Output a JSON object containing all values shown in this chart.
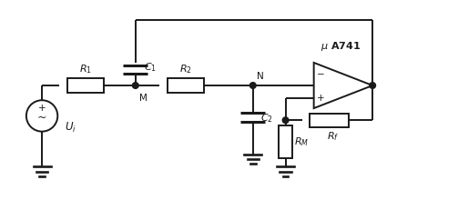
{
  "background_color": "#ffffff",
  "line_color": "#1a1a1a",
  "lw": 1.4,
  "fig_width": 5.03,
  "fig_height": 2.31,
  "dpi": 100,
  "xlim": [
    0,
    10.5
  ],
  "ylim": [
    0,
    4.8
  ]
}
